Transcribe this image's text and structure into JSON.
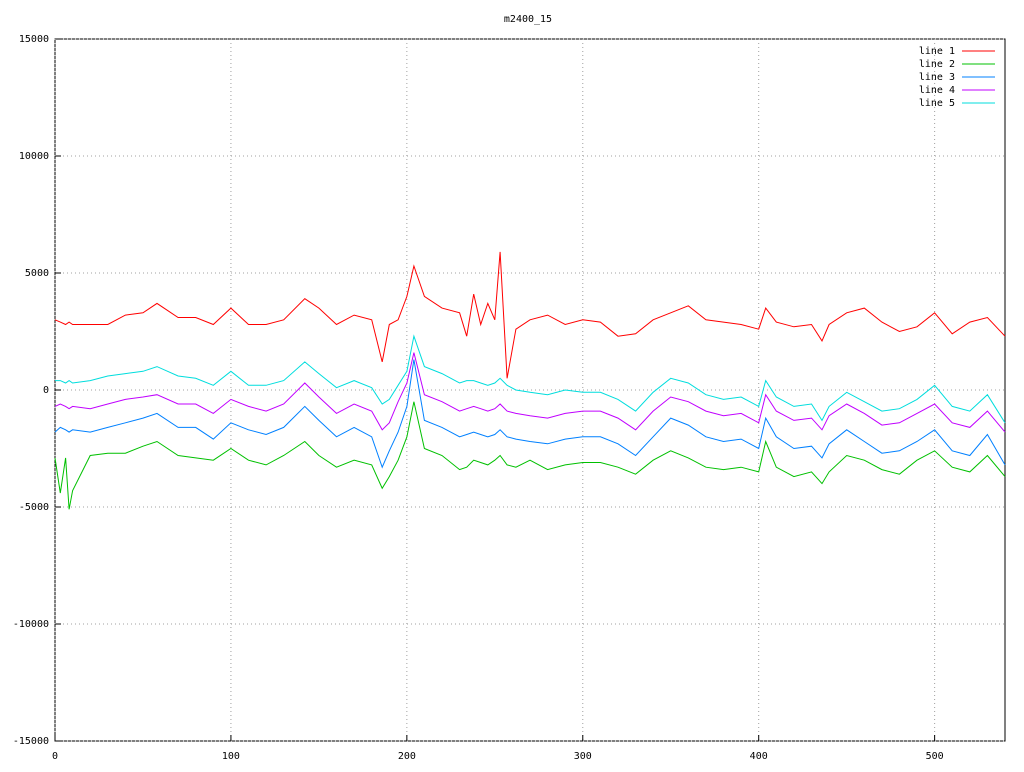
{
  "chart_data": {
    "type": "line",
    "title": "m2400_15",
    "x": [
      0,
      3,
      6,
      8,
      10,
      20,
      30,
      40,
      50,
      58,
      70,
      80,
      90,
      100,
      110,
      120,
      130,
      142,
      150,
      160,
      170,
      180,
      186,
      190,
      195,
      200,
      204,
      210,
      220,
      230,
      234,
      238,
      242,
      246,
      250,
      253,
      257,
      262,
      270,
      280,
      290,
      300,
      310,
      320,
      330,
      340,
      350,
      360,
      370,
      380,
      390,
      400,
      404,
      410,
      420,
      430,
      436,
      440,
      450,
      460,
      470,
      480,
      490,
      500,
      510,
      520,
      530,
      540
    ],
    "series": [
      {
        "name": "line 1",
        "color": "#ff0000",
        "values": [
          3000,
          2900,
          2800,
          2900,
          2800,
          2800,
          2800,
          3200,
          3300,
          3700,
          3100,
          3100,
          2800,
          3500,
          2800,
          2800,
          3000,
          3900,
          3500,
          2800,
          3200,
          3000,
          1200,
          2800,
          3000,
          4000,
          5300,
          4000,
          3500,
          3300,
          2300,
          4100,
          2800,
          3700,
          3000,
          5900,
          500,
          2600,
          3000,
          3200,
          2800,
          3000,
          2900,
          2300,
          2400,
          3000,
          3300,
          3600,
          3000,
          2900,
          2800,
          2600,
          3500,
          2900,
          2700,
          2800,
          2100,
          2800,
          3300,
          3500,
          2900,
          2500,
          2700,
          3300,
          2400,
          2900,
          3100,
          2300
        ]
      },
      {
        "name": "line 2",
        "color": "#00c000",
        "values": [
          -2900,
          -4400,
          -2900,
          -5100,
          -4300,
          -2800,
          -2700,
          -2700,
          -2400,
          -2200,
          -2800,
          -2900,
          -3000,
          -2500,
          -3000,
          -3200,
          -2800,
          -2200,
          -2800,
          -3300,
          -3000,
          -3200,
          -4200,
          -3700,
          -3000,
          -2000,
          -500,
          -2500,
          -2800,
          -3400,
          -3300,
          -3000,
          -3100,
          -3200,
          -3000,
          -2800,
          -3200,
          -3300,
          -3000,
          -3400,
          -3200,
          -3100,
          -3100,
          -3300,
          -3600,
          -3000,
          -2600,
          -2900,
          -3300,
          -3400,
          -3300,
          -3500,
          -2200,
          -3300,
          -3700,
          -3500,
          -4000,
          -3500,
          -2800,
          -3000,
          -3400,
          -3600,
          -3000,
          -2600,
          -3300,
          -3500,
          -2800,
          -3700
        ]
      },
      {
        "name": "line 3",
        "color": "#0080ff",
        "values": [
          -1800,
          -1600,
          -1700,
          -1800,
          -1700,
          -1800,
          -1600,
          -1400,
          -1200,
          -1000,
          -1600,
          -1600,
          -2100,
          -1400,
          -1700,
          -1900,
          -1600,
          -700,
          -1300,
          -2000,
          -1600,
          -2000,
          -3300,
          -2600,
          -1800,
          -700,
          1300,
          -1300,
          -1600,
          -2000,
          -1900,
          -1800,
          -1900,
          -2000,
          -1900,
          -1700,
          -2000,
          -2100,
          -2200,
          -2300,
          -2100,
          -2000,
          -2000,
          -2300,
          -2800,
          -2000,
          -1200,
          -1500,
          -2000,
          -2200,
          -2100,
          -2500,
          -1200,
          -2000,
          -2500,
          -2400,
          -2900,
          -2300,
          -1700,
          -2200,
          -2700,
          -2600,
          -2200,
          -1700,
          -2600,
          -2800,
          -1900,
          -3200
        ]
      },
      {
        "name": "line 4",
        "color": "#c000ff",
        "values": [
          -700,
          -600,
          -700,
          -800,
          -700,
          -800,
          -600,
          -400,
          -300,
          -200,
          -600,
          -600,
          -1000,
          -400,
          -700,
          -900,
          -600,
          300,
          -300,
          -1000,
          -600,
          -900,
          -1700,
          -1400,
          -500,
          300,
          1600,
          -200,
          -500,
          -900,
          -800,
          -700,
          -800,
          -900,
          -800,
          -600,
          -900,
          -1000,
          -1100,
          -1200,
          -1000,
          -900,
          -900,
          -1200,
          -1700,
          -900,
          -300,
          -500,
          -900,
          -1100,
          -1000,
          -1400,
          -200,
          -900,
          -1300,
          -1200,
          -1700,
          -1100,
          -600,
          -1000,
          -1500,
          -1400,
          -1000,
          -600,
          -1400,
          -1600,
          -900,
          -1800
        ]
      },
      {
        "name": "line 5",
        "color": "#00dddd",
        "values": [
          400,
          400,
          300,
          400,
          300,
          400,
          600,
          700,
          800,
          1000,
          600,
          500,
          200,
          800,
          200,
          200,
          400,
          1200,
          700,
          100,
          400,
          100,
          -600,
          -400,
          200,
          800,
          2300,
          1000,
          700,
          300,
          400,
          400,
          300,
          200,
          300,
          500,
          200,
          0,
          -100,
          -200,
          0,
          -100,
          -100,
          -400,
          -900,
          -100,
          500,
          300,
          -200,
          -400,
          -300,
          -700,
          400,
          -300,
          -700,
          -600,
          -1300,
          -700,
          -100,
          -500,
          -900,
          -800,
          -400,
          200,
          -700,
          -900,
          -200,
          -1400
        ]
      }
    ],
    "xlim": [
      0,
      540
    ],
    "xticks": [
      0,
      100,
      200,
      300,
      400,
      500
    ],
    "ylim": [
      -15000,
      15000
    ],
    "yticks": [
      -15000,
      -10000,
      -5000,
      0,
      5000,
      10000,
      15000
    ],
    "grid": true,
    "legend": "top-right"
  }
}
